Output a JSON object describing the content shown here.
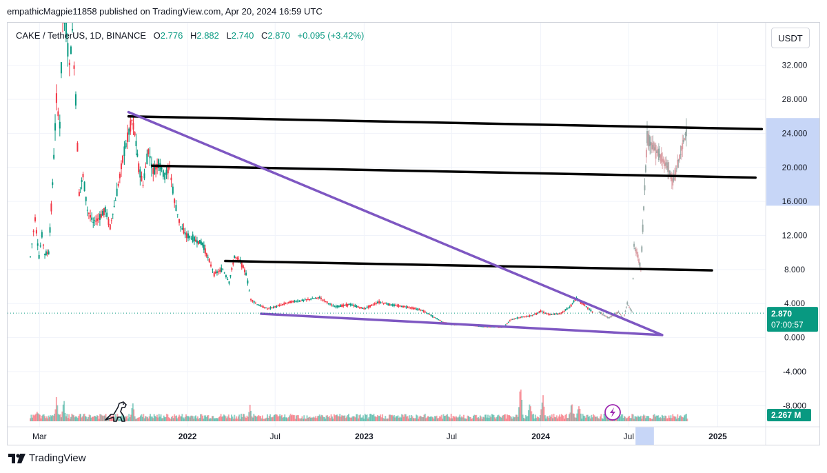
{
  "header": {
    "publish_line": "empathicMagpie11858 published on TradingView.com, Apr 20, 2024 16:59 UTC"
  },
  "legend": {
    "symbol": "CAKE / TetherUS, 1D, BINANCE",
    "open_label": "O",
    "open_value": "2.776",
    "high_label": "H",
    "high_value": "2.882",
    "low_label": "L",
    "low_value": "2.740",
    "close_label": "C",
    "close_value": "2.870",
    "change": "+0.095 (+3.42%)"
  },
  "currency_button": "USDT",
  "price_tag": {
    "price": "2.870",
    "countdown": "07:00:57"
  },
  "volume_tag": "2.267 M",
  "footer": {
    "brand": "TradingView"
  },
  "colors": {
    "up": "#089981",
    "down": "#f23645",
    "trend_purple": "#7e57c2",
    "hline": "#000000",
    "highlight": "#c7d6f7"
  },
  "icons": [
    "dinosaur-icon",
    "lightning-icon",
    "tradingview-logo-icon"
  ],
  "chart_data": {
    "type": "candlestick",
    "y_axis": {
      "ticks": [
        "32.000",
        "28.000",
        "24.000",
        "20.000",
        "16.000",
        "12.000",
        "8.000",
        "4.000",
        "0.000",
        "-4.000",
        "-8.000"
      ],
      "tick_values": [
        32,
        28,
        24,
        20,
        16,
        12,
        8,
        4,
        0,
        -4,
        -8
      ],
      "range": [
        -10,
        37
      ]
    },
    "x_axis": {
      "ticks": [
        "Mar",
        "2022",
        "Jul",
        "2023",
        "Jul",
        "2024",
        "Jul",
        "2025"
      ],
      "tick_dates": [
        "2021-03-01",
        "2022-01-01",
        "2022-07-01",
        "2023-01-01",
        "2023-07-01",
        "2024-01-01",
        "2024-07-01",
        "2025-01-01"
      ],
      "range": [
        "2020-12-25",
        "2025-04-10"
      ]
    },
    "price_series": [
      [
        "2021-02-10",
        9.5
      ],
      [
        "2021-02-20",
        14
      ],
      [
        "2021-02-28",
        9.5
      ],
      [
        "2021-03-06",
        12
      ],
      [
        "2021-03-12",
        9.8
      ],
      [
        "2021-03-20",
        10
      ],
      [
        "2021-03-28",
        18
      ],
      [
        "2021-04-05",
        28
      ],
      [
        "2021-04-12",
        25
      ],
      [
        "2021-04-18",
        38
      ],
      [
        "2021-04-25",
        36
      ],
      [
        "2021-05-02",
        32
      ],
      [
        "2021-05-08",
        36
      ],
      [
        "2021-05-15",
        28
      ],
      [
        "2021-05-22",
        17
      ],
      [
        "2021-05-30",
        19
      ],
      [
        "2021-06-08",
        15
      ],
      [
        "2021-06-20",
        13.5
      ],
      [
        "2021-07-01",
        14
      ],
      [
        "2021-07-15",
        15
      ],
      [
        "2021-07-25",
        13
      ],
      [
        "2021-08-08",
        17
      ],
      [
        "2021-08-20",
        21
      ],
      [
        "2021-08-30",
        23.5
      ],
      [
        "2021-09-08",
        25.5
      ],
      [
        "2021-09-14",
        24
      ],
      [
        "2021-09-22",
        20
      ],
      [
        "2021-10-01",
        18
      ],
      [
        "2021-10-12",
        22
      ],
      [
        "2021-10-22",
        19.5
      ],
      [
        "2021-11-02",
        20.5
      ],
      [
        "2021-11-15",
        19
      ],
      [
        "2021-11-25",
        20
      ],
      [
        "2021-12-05",
        16
      ],
      [
        "2021-12-18",
        13
      ],
      [
        "2021-12-30",
        12
      ],
      [
        "2022-01-15",
        11.5
      ],
      [
        "2022-02-01",
        11
      ],
      [
        "2022-02-15",
        9
      ],
      [
        "2022-02-25",
        7.5
      ],
      [
        "2022-03-15",
        8
      ],
      [
        "2022-03-28",
        6.5
      ],
      [
        "2022-04-08",
        9.5
      ],
      [
        "2022-04-20",
        9
      ],
      [
        "2022-05-02",
        7.5
      ],
      [
        "2022-05-12",
        4.5
      ],
      [
        "2022-05-25",
        3.9
      ],
      [
        "2022-06-15",
        3.4
      ],
      [
        "2022-07-01",
        3.6
      ],
      [
        "2022-08-01",
        4.2
      ],
      [
        "2022-08-20",
        4.3
      ],
      [
        "2022-09-10",
        4.5
      ],
      [
        "2022-10-01",
        4.7
      ],
      [
        "2022-11-01",
        3.6
      ],
      [
        "2022-12-01",
        3.9
      ],
      [
        "2023-01-01",
        3.4
      ],
      [
        "2023-02-01",
        4.2
      ],
      [
        "2023-03-01",
        3.8
      ],
      [
        "2023-04-01",
        3.6
      ],
      [
        "2023-05-01",
        3.2
      ],
      [
        "2023-06-10",
        1.9
      ],
      [
        "2023-07-01",
        1.5
      ],
      [
        "2023-08-01",
        1.5
      ],
      [
        "2023-09-01",
        1.3
      ],
      [
        "2023-10-15",
        1.2
      ],
      [
        "2023-11-01",
        2.1
      ],
      [
        "2023-11-20",
        2.4
      ],
      [
        "2023-12-15",
        2.6
      ],
      [
        "2024-01-01",
        3.1
      ],
      [
        "2024-01-20",
        2.7
      ],
      [
        "2024-02-10",
        2.8
      ],
      [
        "2024-03-01",
        3.6
      ],
      [
        "2024-03-15",
        4.6
      ],
      [
        "2024-04-01",
        3.8
      ],
      [
        "2024-04-20",
        2.87
      ]
    ],
    "future_price_series": [
      [
        "2024-05-01",
        3.0
      ],
      [
        "2024-05-20",
        2.3
      ],
      [
        "2024-06-10",
        3.0
      ],
      [
        "2024-06-20",
        2.2
      ],
      [
        "2024-06-28",
        4.0
      ],
      [
        "2024-07-08",
        3.0
      ],
      [
        "2024-07-12",
        10.8
      ],
      [
        "2024-07-20",
        9.6
      ],
      [
        "2024-07-26",
        8.0
      ],
      [
        "2024-08-05",
        20
      ],
      [
        "2024-08-08",
        23.5
      ],
      [
        "2024-09-01",
        21.5
      ],
      [
        "2024-09-20",
        20
      ],
      [
        "2024-09-30",
        18.2
      ],
      [
        "2024-10-20",
        22.5
      ],
      [
        "2024-10-30",
        24.8
      ]
    ],
    "volume_spikes": [
      [
        "2021-02-25",
        0.35
      ],
      [
        "2021-04-05",
        0.6
      ],
      [
        "2021-04-20",
        0.55
      ],
      [
        "2021-09-10",
        0.45
      ],
      [
        "2022-05-10",
        0.4
      ],
      [
        "2023-11-20",
        0.98
      ],
      [
        "2023-12-10",
        0.55
      ],
      [
        "2024-01-05",
        0.75
      ],
      [
        "2024-03-05",
        0.5
      ],
      [
        "2024-03-20",
        0.55
      ]
    ],
    "horizontal_lines": [
      {
        "x": [
          "2021-09-01",
          "2025-04-02"
        ],
        "y": [
          26.0,
          24.5
        ]
      },
      {
        "x": [
          "2021-10-20",
          "2025-03-20"
        ],
        "y": [
          20.2,
          18.8
        ]
      },
      {
        "x": [
          "2022-03-20",
          "2024-12-20"
        ],
        "y": [
          9.0,
          7.9
        ]
      }
    ],
    "trend_lines": [
      {
        "x": [
          "2021-09-01",
          "2024-09-08"
        ],
        "y": [
          26.5,
          0.3
        ]
      },
      {
        "x": [
          "2022-06-02",
          "2024-09-08"
        ],
        "y": [
          2.8,
          0.3
        ]
      }
    ],
    "last_price": 2.87,
    "highlight_x_band": [
      "2024-07-15",
      "2024-08-22"
    ],
    "highlight_y_band": [
      15.5,
      25.8
    ]
  }
}
